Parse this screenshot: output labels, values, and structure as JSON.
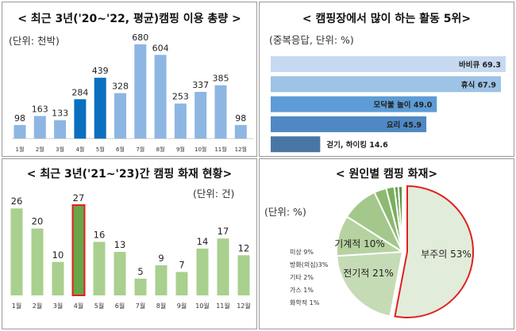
{
  "chart_data": [
    {
      "type": "bar",
      "title": "< 최근 3년('20~'22, 평균)캠핑 이용 총량 >",
      "unit": "(단위: 천박)",
      "categories": [
        "1월",
        "2월",
        "3월",
        "4월",
        "5월",
        "6월",
        "7월",
        "8월",
        "9월",
        "10월",
        "11월",
        "12월"
      ],
      "values": [
        98,
        163,
        133,
        284,
        439,
        328,
        680,
        604,
        253,
        337,
        385,
        98
      ],
      "highlight": [
        "4월",
        "5월"
      ],
      "colors": {
        "base": "#8DB6E2",
        "highlight": "#0B6FC0"
      }
    },
    {
      "type": "bar",
      "orientation": "horizontal",
      "title": "< 캠핑장에서 많이 하는 활동 5위>",
      "unit": "(중복응답, 단위: %)",
      "categories": [
        "바비큐",
        "휴식",
        "모닥불 놀이",
        "요리",
        "걷기, 하이킹"
      ],
      "values": [
        69.3,
        67.9,
        49.0,
        45.9,
        14.6
      ],
      "value_labels": [
        "69.3",
        "67.9",
        "49.0",
        "45.9",
        "14.6"
      ],
      "colors": [
        "#C6D9F1",
        "#9DC3E6",
        "#5D9CD6",
        "#4F88C3",
        "#4A76A6"
      ]
    },
    {
      "type": "bar",
      "title": "< 최근 3년('21~'23)간 캠핑 화재 현황>",
      "unit": "(단위: 건)",
      "categories": [
        "1월",
        "2월",
        "3월",
        "4월",
        "5월",
        "6월",
        "7월",
        "8월",
        "9월",
        "10월",
        "11월",
        "12월"
      ],
      "values": [
        26,
        20,
        10,
        27,
        16,
        13,
        5,
        9,
        7,
        14,
        17,
        12
      ],
      "highlight": [
        "4월"
      ],
      "colors": {
        "base": "#A9D08E",
        "highlight": "#6AA548",
        "highlight_border": "#E02020"
      }
    },
    {
      "type": "pie",
      "title": "< 원인별 캠핑 화재>",
      "unit": "(단위: %)",
      "slices": [
        {
          "label": "부주의",
          "value": 53,
          "text": "부주의 53%"
        },
        {
          "label": "전기적",
          "value": 21,
          "text": "전기적 21%"
        },
        {
          "label": "기계적",
          "value": 10,
          "text": "기계적 10%"
        },
        {
          "label": "미상",
          "value": 9,
          "text": "미상 9%"
        },
        {
          "label": "방화(의심)",
          "value": 3,
          "text": "방화(의심)3%"
        },
        {
          "label": "기타",
          "value": 2,
          "text": "기타 2%"
        },
        {
          "label": "가스",
          "value": 1,
          "text": "가스  1%"
        },
        {
          "label": "화학적",
          "value": 1,
          "text": "화학적 1%"
        }
      ],
      "highlight": "부주의",
      "highlight_border": "#E02020"
    }
  ]
}
